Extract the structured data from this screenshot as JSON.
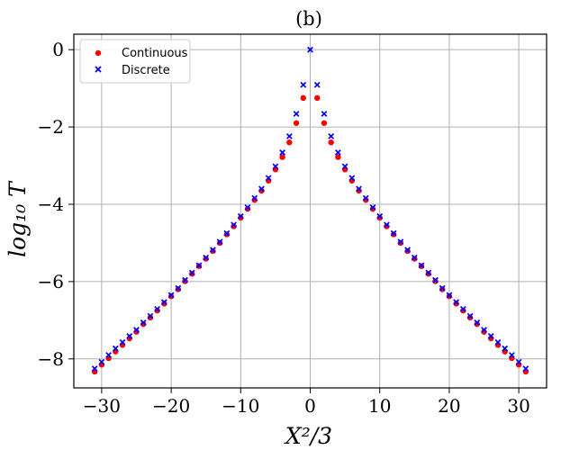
{
  "chart_data": {
    "type": "scatter",
    "title": "(b)",
    "xlabel": "X²/3",
    "ylabel": "log₁₀ T",
    "xlim": [
      -34,
      34
    ],
    "ylim": [
      -8.75,
      0.4
    ],
    "xticks": [
      -30,
      -20,
      -10,
      0,
      10,
      20,
      30
    ],
    "xtick_labels": [
      "−30",
      "−20",
      "−10",
      "0",
      "10",
      "20",
      "30"
    ],
    "yticks": [
      0,
      -2,
      -4,
      -6,
      -8
    ],
    "ytick_labels": [
      "0",
      "−2",
      "−4",
      "−6",
      "−8"
    ],
    "grid": true,
    "legend_position": "top-left",
    "colors": {
      "continuous": "#ff0000",
      "discrete": "#0000ff"
    },
    "series": [
      {
        "name": "Continuous",
        "marker": "circle",
        "x": [
          -31,
          -30,
          -29,
          -28,
          -27,
          -26,
          -25,
          -24,
          -23,
          -22,
          -21,
          -20,
          -19,
          -18,
          -17,
          -16,
          -15,
          -14,
          -13,
          -12,
          -11,
          -10,
          -9,
          -8,
          -7,
          -6,
          -5,
          -4,
          -3,
          -2,
          -1,
          1,
          2,
          3,
          4,
          5,
          6,
          7,
          8,
          9,
          10,
          11,
          12,
          13,
          14,
          15,
          16,
          17,
          18,
          19,
          20,
          21,
          22,
          23,
          24,
          25,
          26,
          27,
          28,
          29,
          30,
          31
        ],
        "y": [
          -8.33,
          -8.15,
          -7.98,
          -7.81,
          -7.64,
          -7.47,
          -7.3,
          -7.1,
          -6.93,
          -6.75,
          -6.57,
          -6.38,
          -6.2,
          -5.99,
          -5.8,
          -5.6,
          -5.41,
          -5.21,
          -5.0,
          -4.78,
          -4.57,
          -4.35,
          -4.12,
          -3.89,
          -3.65,
          -3.39,
          -3.1,
          -2.78,
          -2.4,
          -1.9,
          -1.25,
          -1.25,
          -1.9,
          -2.4,
          -2.78,
          -3.1,
          -3.39,
          -3.65,
          -3.89,
          -4.12,
          -4.35,
          -4.57,
          -4.78,
          -5.0,
          -5.21,
          -5.41,
          -5.6,
          -5.8,
          -5.99,
          -6.2,
          -6.38,
          -6.57,
          -6.75,
          -6.93,
          -7.1,
          -7.3,
          -7.47,
          -7.64,
          -7.81,
          -7.98,
          -8.15,
          -8.33
        ]
      },
      {
        "name": "Discrete",
        "marker": "x",
        "x": [
          -31,
          -30,
          -29,
          -28,
          -27,
          -26,
          -25,
          -24,
          -23,
          -22,
          -21,
          -20,
          -19,
          -18,
          -17,
          -16,
          -15,
          -14,
          -13,
          -12,
          -11,
          -10,
          -9,
          -8,
          -7,
          -6,
          -5,
          -4,
          -3,
          -2,
          -1,
          0,
          1,
          2,
          3,
          4,
          5,
          6,
          7,
          8,
          9,
          10,
          11,
          12,
          13,
          14,
          15,
          16,
          17,
          18,
          19,
          20,
          21,
          22,
          23,
          24,
          25,
          26,
          27,
          28,
          29,
          30,
          31
        ],
        "y": [
          -8.25,
          -8.08,
          -7.9,
          -7.73,
          -7.57,
          -7.41,
          -7.25,
          -7.06,
          -6.89,
          -6.71,
          -6.53,
          -6.35,
          -6.17,
          -5.96,
          -5.77,
          -5.58,
          -5.38,
          -5.18,
          -4.97,
          -4.75,
          -4.53,
          -4.31,
          -4.08,
          -3.84,
          -3.6,
          -3.32,
          -3.02,
          -2.66,
          -2.24,
          -1.66,
          -0.91,
          0.0,
          -0.91,
          -1.66,
          -2.24,
          -2.66,
          -3.02,
          -3.32,
          -3.6,
          -3.84,
          -4.08,
          -4.31,
          -4.53,
          -4.75,
          -4.97,
          -5.18,
          -5.38,
          -5.58,
          -5.77,
          -5.96,
          -6.17,
          -6.35,
          -6.53,
          -6.71,
          -6.89,
          -7.06,
          -7.25,
          -7.41,
          -7.57,
          -7.73,
          -7.9,
          -8.08,
          -8.25
        ]
      }
    ]
  }
}
